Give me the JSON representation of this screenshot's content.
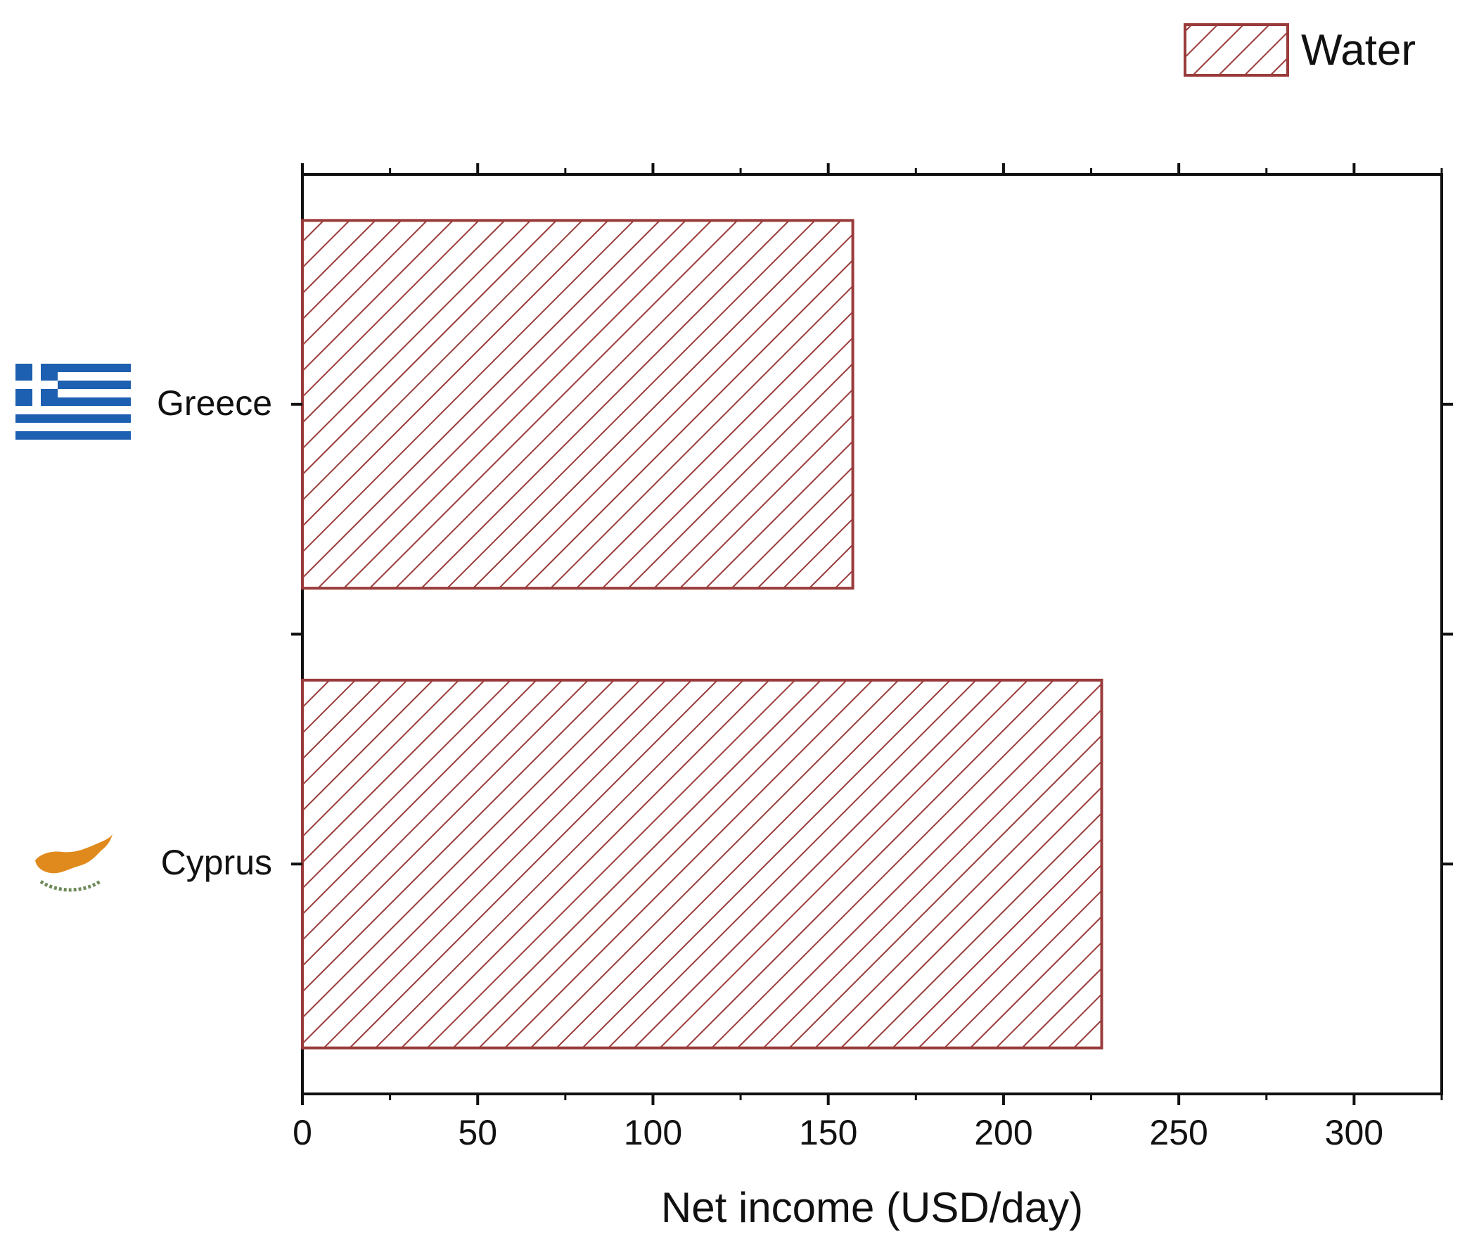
{
  "chart_data": {
    "type": "bar",
    "orientation": "horizontal",
    "categories": [
      "Greece",
      "Cyprus"
    ],
    "series": [
      {
        "name": "Water",
        "values": [
          157,
          228
        ]
      }
    ],
    "xlabel": "Net income (USD/day)",
    "ylabel": "",
    "xlim": [
      0,
      325
    ],
    "xticks": [
      0,
      50,
      100,
      150,
      200,
      250,
      300
    ],
    "grid": false,
    "legend_position": "top-right",
    "bar_fill": "hatched",
    "colors": {
      "bar_stroke": "#9a3b3b",
      "axis": "#111111"
    },
    "category_icons": [
      "greece-flag-icon",
      "cyprus-flag-icon"
    ]
  }
}
